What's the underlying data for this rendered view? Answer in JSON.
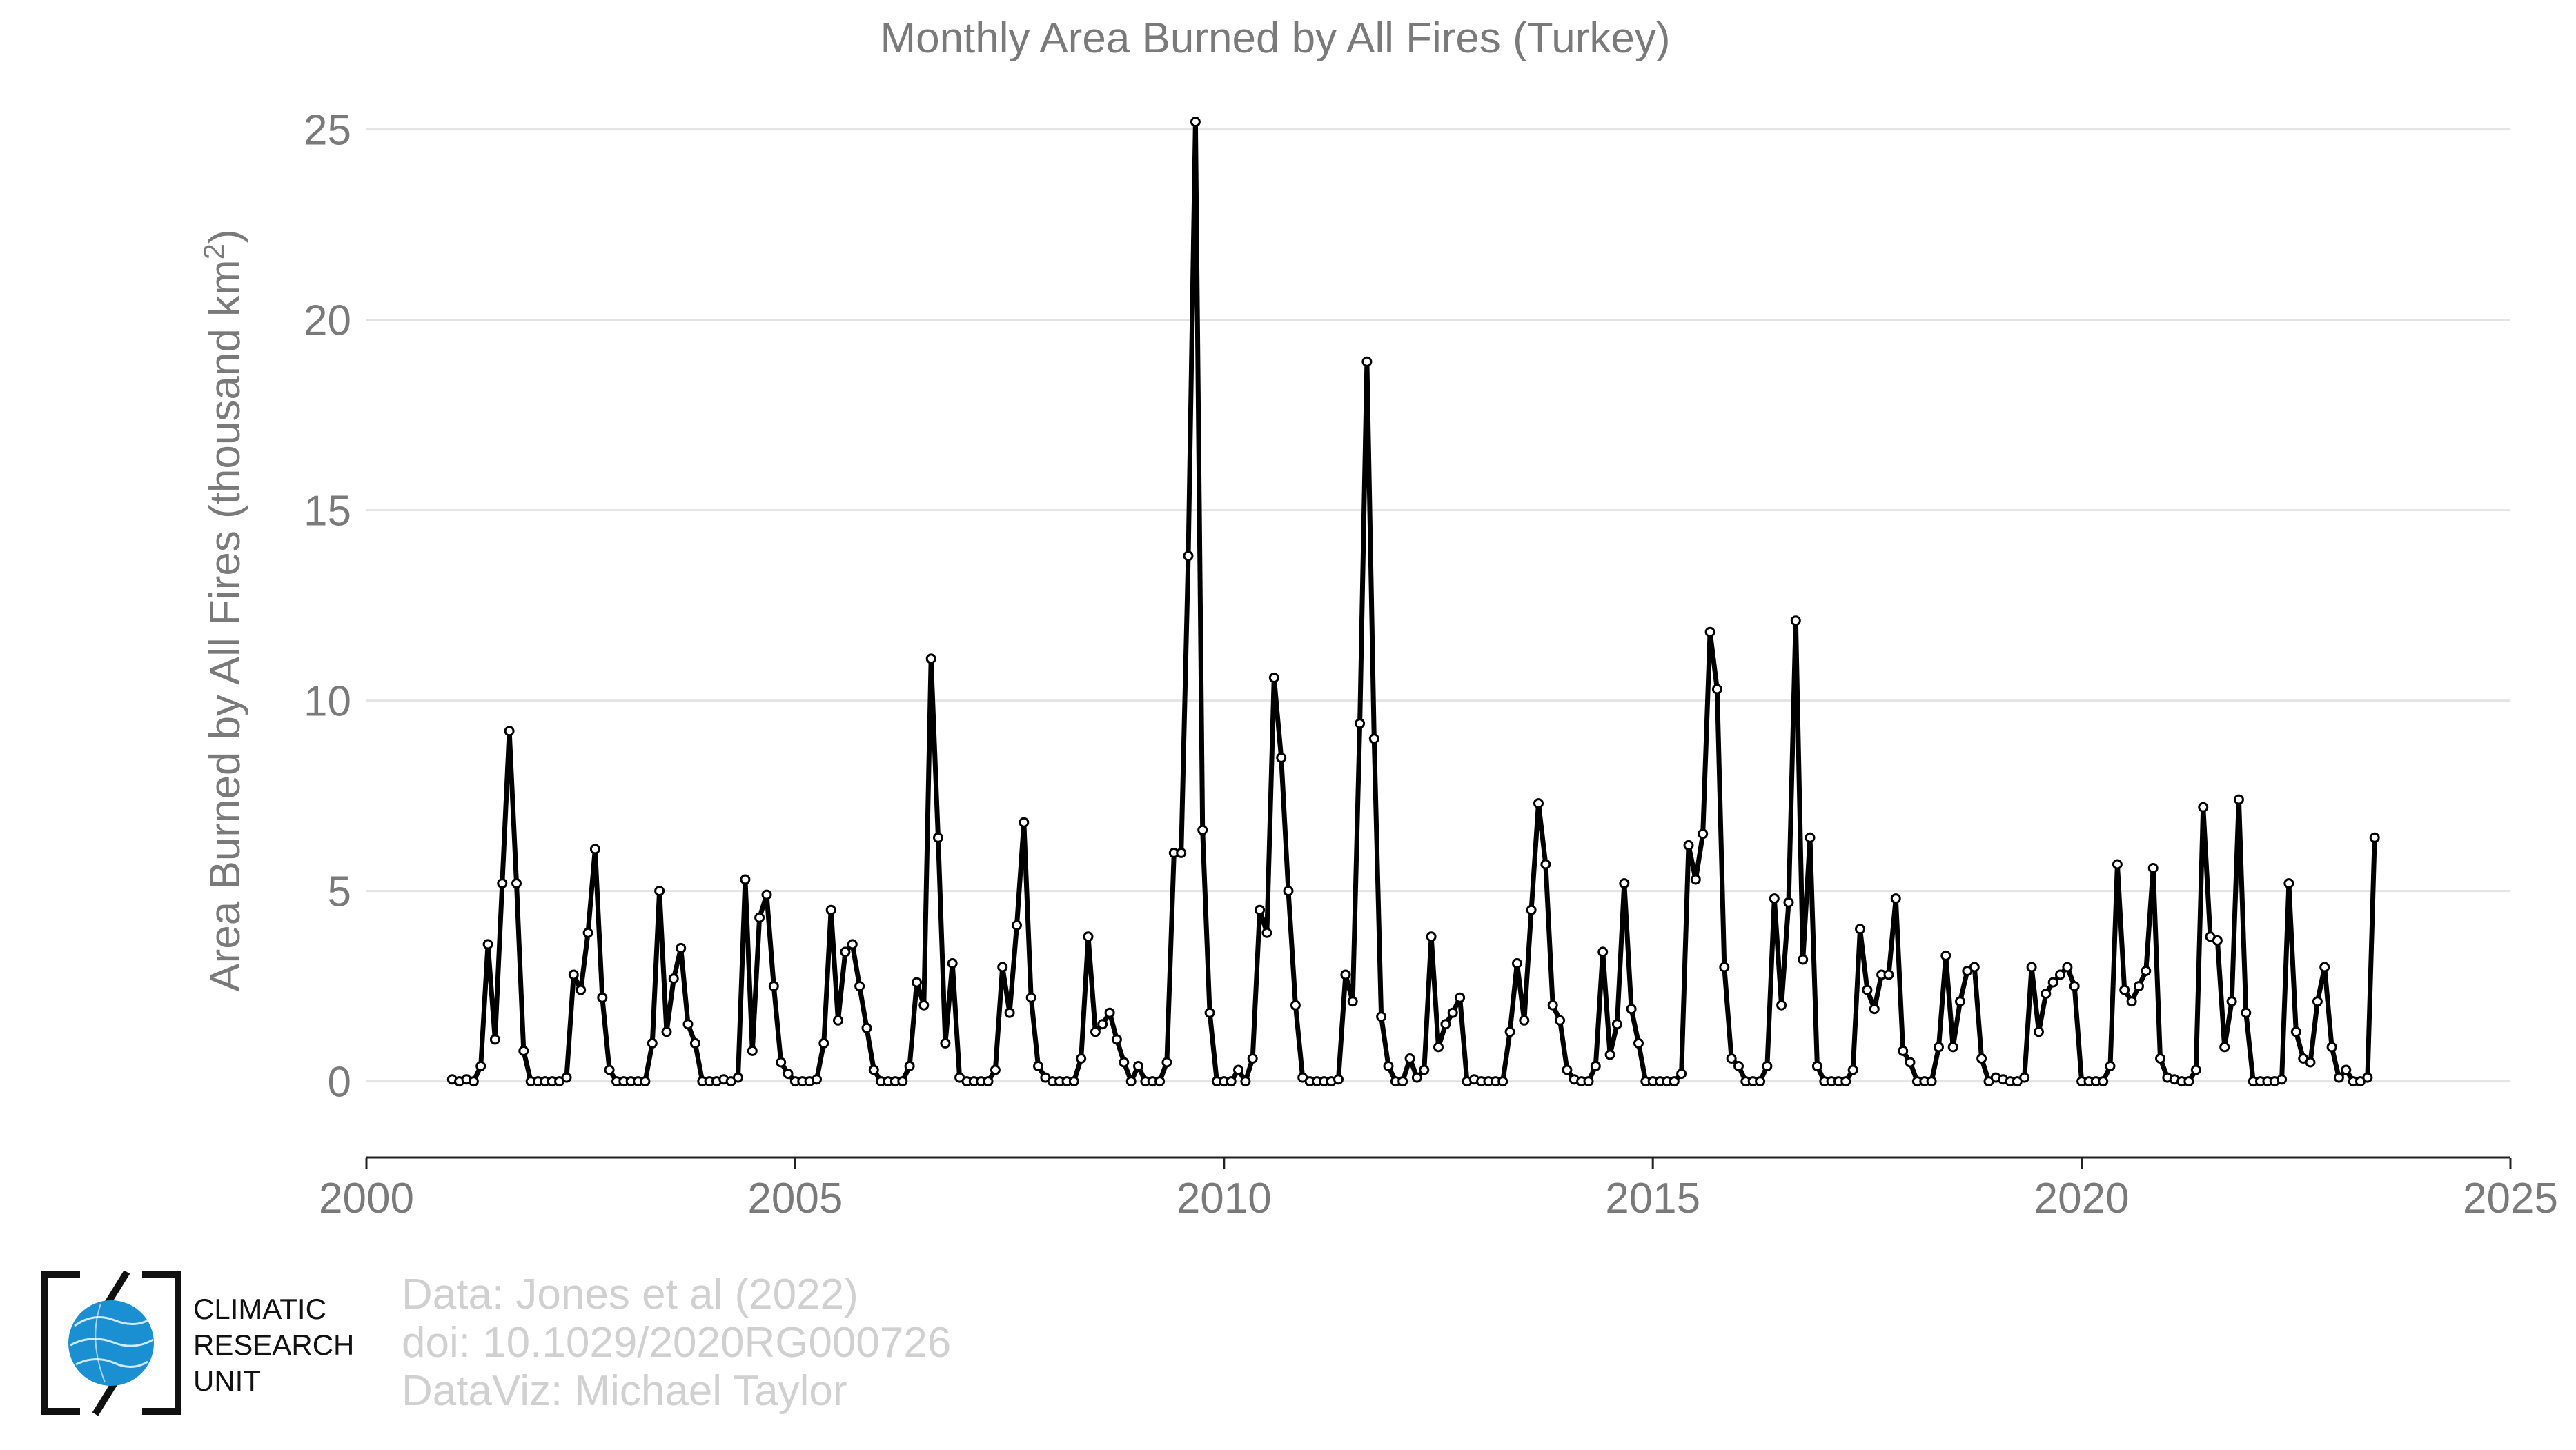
{
  "chart_data": {
    "type": "line",
    "title": "Monthly Area Burned by All Fires (Turkey)",
    "xlabel": "",
    "ylabel": "Area Burned by All Fires (thousand km",
    "ylabel_superscript": "2",
    "ylabel_suffix": ")",
    "xlim": [
      2000,
      2025
    ],
    "ylim": [
      -2,
      25.5
    ],
    "x_ticks": [
      2000,
      2005,
      2010,
      2015,
      2020,
      2025
    ],
    "y_ticks": [
      0,
      5,
      10,
      15,
      20,
      25
    ],
    "grid": "horizontal",
    "legend": "none",
    "line_color": "#000000",
    "marker_fill": "#ffffff",
    "start": "2001-01",
    "series": [
      {
        "values": [
          0.05,
          0.0,
          0.05,
          0.0,
          0.4,
          3.6,
          1.1,
          5.2,
          9.2,
          5.2,
          0.8,
          0.0,
          0.0,
          0.0,
          0.0,
          0.0,
          0.1,
          2.8,
          2.4,
          3.9,
          6.1,
          2.2,
          0.3,
          0.0,
          0.0,
          0.0,
          0.0,
          0.0,
          1.0,
          5.0,
          1.3,
          2.7,
          3.5,
          1.5,
          1.0,
          0.0,
          0.0,
          0.0,
          0.05,
          0.0,
          0.1,
          5.3,
          0.8,
          4.3,
          4.9,
          2.5,
          0.5,
          0.2,
          0.0,
          0.0,
          0.0,
          0.05,
          1.0,
          4.5,
          1.6,
          3.4,
          3.6,
          2.5,
          1.4,
          0.3,
          0.0,
          0.0,
          0.0,
          0.0,
          0.4,
          2.6,
          2.0,
          11.1,
          6.4,
          1.0,
          3.1,
          0.1,
          0.0,
          0.0,
          0.0,
          0.0,
          0.3,
          3.0,
          1.8,
          4.1,
          6.8,
          2.2,
          0.4,
          0.1,
          0.0,
          0.0,
          0.0,
          0.0,
          0.6,
          3.8,
          1.3,
          1.5,
          1.8,
          1.1,
          0.5,
          0.0,
          0.4,
          0.0,
          0.0,
          0.0,
          0.5,
          6.0,
          6.0,
          13.8,
          25.2,
          6.6,
          1.8,
          0.0,
          0.0,
          0.0,
          0.3,
          0.0,
          0.6,
          4.5,
          3.9,
          10.6,
          8.5,
          5.0,
          2.0,
          0.1,
          0.0,
          0.0,
          0.0,
          0.0,
          0.05,
          2.8,
          2.1,
          9.4,
          18.9,
          9.0,
          1.7,
          0.4,
          0.0,
          0.0,
          0.6,
          0.1,
          0.3,
          3.8,
          0.9,
          1.5,
          1.8,
          2.2,
          0.0,
          0.05,
          0.0,
          0.0,
          0.0,
          0.0,
          1.3,
          3.1,
          1.6,
          4.5,
          7.3,
          5.7,
          2.0,
          1.6,
          0.3,
          0.05,
          0.0,
          0.0,
          0.4,
          3.4,
          0.7,
          1.5,
          5.2,
          1.9,
          1.0,
          0.0,
          0.0,
          0.0,
          0.0,
          0.0,
          0.2,
          6.2,
          5.3,
          6.5,
          11.8,
          10.3,
          3.0,
          0.6,
          0.4,
          0.0,
          0.0,
          0.0,
          0.4,
          4.8,
          2.0,
          4.7,
          12.1,
          3.2,
          6.4,
          0.4,
          0.0,
          0.0,
          0.0,
          0.0,
          0.3,
          4.0,
          2.4,
          1.9,
          2.8,
          2.8,
          4.8,
          0.8,
          0.5,
          0.0,
          0.0,
          0.0,
          0.9,
          3.3,
          0.9,
          2.1,
          2.9,
          3.0,
          0.6,
          0.0,
          0.1,
          0.05,
          0.0,
          0.0,
          0.1,
          3.0,
          1.3,
          2.3,
          2.6,
          2.8,
          3.0,
          2.5,
          0.0,
          0.0,
          0.0,
          0.0,
          0.4,
          5.7,
          2.4,
          2.1,
          2.5,
          2.9,
          5.6,
          0.6,
          0.1,
          0.05,
          0.0,
          0.0,
          0.3,
          7.2,
          3.8,
          3.7,
          0.9,
          2.1,
          7.4,
          1.8,
          0.0,
          0.0,
          0.0,
          0.0,
          0.05,
          5.2,
          1.3,
          0.6,
          0.5,
          2.1,
          3.0,
          0.9,
          0.1,
          0.3,
          0.0,
          0.0,
          0.1,
          6.4
        ]
      }
    ]
  },
  "credits": {
    "line1": "Data: Jones et al (2022)",
    "line2": "doi: 10.1029/2020RG000726",
    "line3": "DataViz: Michael Taylor"
  },
  "logo": {
    "line1": "CLIMATIC",
    "line2": "RESEARCH",
    "line3": "UNIT",
    "globe_color": "#1a8fd1",
    "icon": "globe-icon"
  }
}
